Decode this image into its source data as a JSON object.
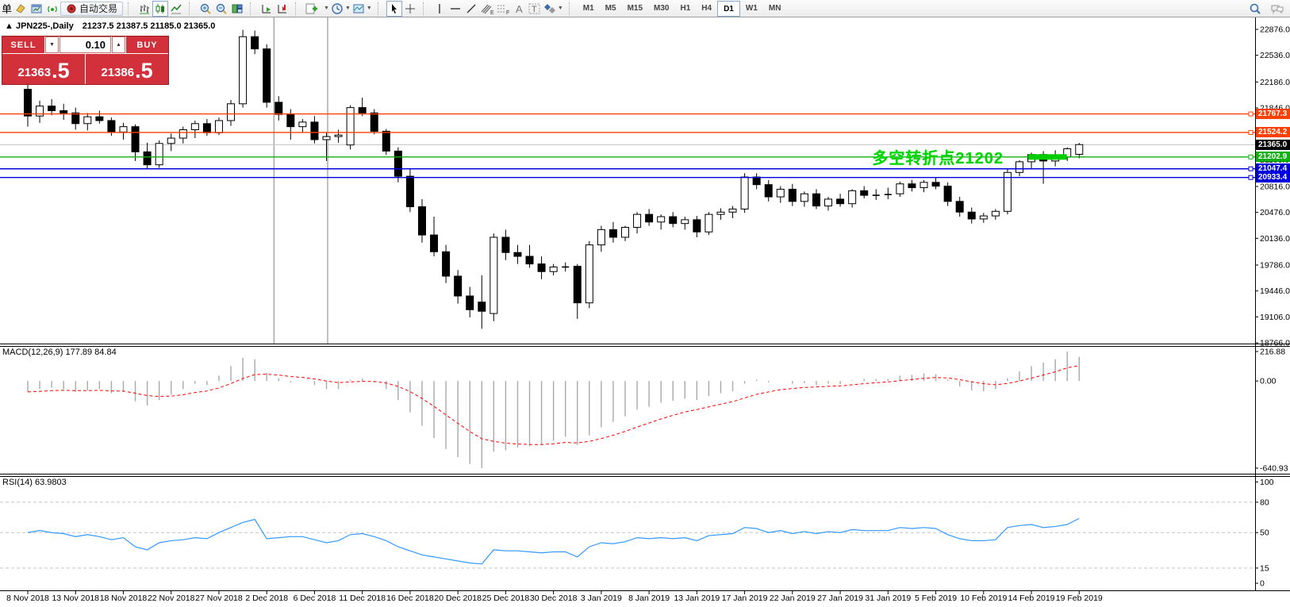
{
  "toolbar": {
    "new_order_partial": "单",
    "autotrade_label": "自动交易",
    "timeframes": [
      "M1",
      "M5",
      "M15",
      "M30",
      "H1",
      "H4",
      "D1",
      "W1",
      "MN"
    ],
    "active_timeframe": "D1"
  },
  "symbol_header": {
    "collapse_icon": "▲",
    "name": "JPN225-,Daily",
    "ohlc": "21237.5 21387.5 21185.0 21365.0"
  },
  "trade_panel": {
    "sell_label": "SELL",
    "buy_label": "BUY",
    "volume": "0.10",
    "spin_down": "▼",
    "spin_up": "▲",
    "sell_price_main": "21363",
    "sell_price_frac": ".5",
    "buy_price_main": "21386",
    "buy_price_frac": ".5"
  },
  "annotation": {
    "text": "多空转折点21202",
    "color": "#00d400"
  },
  "indicator_labels": {
    "macd": "MACD(12,26,9) 177.89 84.84",
    "rsi": "RSI(14) 63.9803"
  },
  "chart_data": [
    {
      "type": "candlestick",
      "title": "JPN225-,Daily",
      "ylim": [
        18756,
        23032
      ],
      "y_ticks": [
        22876.0,
        22536.0,
        22186.0,
        21846.0,
        21506.0,
        21166.0,
        20816.0,
        20476.0,
        20136.0,
        19786.0,
        19446.0,
        19106.0,
        18766.0
      ],
      "current_price": 21365.0,
      "current_price_label": "21365.0",
      "current_price_color": "#000000",
      "hlines": [
        {
          "price": 21767.3,
          "label": "21767.3",
          "color": "#ff4000"
        },
        {
          "price": 21524.2,
          "label": "21524.2",
          "color": "#ff4000"
        },
        {
          "price": 21202.9,
          "label": "21202.9",
          "color": "#10b010"
        },
        {
          "price": 21047.4,
          "label": "21047.4",
          "color": "#0000dd"
        },
        {
          "price": 20933.4,
          "label": "20933.4",
          "color": "#0000dd"
        }
      ],
      "vline_indices": [
        20.6,
        25.1
      ],
      "green_segment": {
        "price": 21202.9,
        "from_index": 84.0,
        "to_index": 86.7,
        "thickness": 7,
        "color": "#00cc00"
      },
      "x_labels": [
        {
          "index": 0,
          "label": "8 Nov 2018"
        },
        {
          "index": 4,
          "label": "13 Nov 2018"
        },
        {
          "index": 8,
          "label": "18 Nov 2018"
        },
        {
          "index": 12,
          "label": "22 Nov 2018"
        },
        {
          "index": 16,
          "label": "27 Nov 2018"
        },
        {
          "index": 20,
          "label": "2 Dec 2018"
        },
        {
          "index": 24,
          "label": "6 Dec 2018"
        },
        {
          "index": 28,
          "label": "11 Dec 2018"
        },
        {
          "index": 32,
          "label": "16 Dec 2018"
        },
        {
          "index": 36,
          "label": "20 Dec 2018"
        },
        {
          "index": 40,
          "label": "25 Dec 2018"
        },
        {
          "index": 44,
          "label": "30 Dec 2018"
        },
        {
          "index": 48,
          "label": "3 Jan 2019"
        },
        {
          "index": 52,
          "label": "8 Jan 2019"
        },
        {
          "index": 56,
          "label": "13 Jan 2019"
        },
        {
          "index": 60,
          "label": "17 Jan 2019"
        },
        {
          "index": 64,
          "label": "22 Jan 2019"
        },
        {
          "index": 68,
          "label": "27 Jan 2019"
        },
        {
          "index": 72,
          "label": "31 Jan 2019"
        },
        {
          "index": 76,
          "label": "5 Feb 2019"
        },
        {
          "index": 80,
          "label": "10 Feb 2019"
        },
        {
          "index": 84,
          "label": "14 Feb 2019"
        },
        {
          "index": 88,
          "label": "19 Feb 2019"
        }
      ],
      "candles": [
        [
          22090,
          22160,
          21600,
          21740
        ],
        [
          21740,
          21940,
          21650,
          21870
        ],
        [
          21870,
          21960,
          21750,
          21810
        ],
        [
          21810,
          21900,
          21690,
          21780
        ],
        [
          21780,
          21850,
          21560,
          21640
        ],
        [
          21640,
          21780,
          21550,
          21730
        ],
        [
          21730,
          21810,
          21640,
          21680
        ],
        [
          21680,
          21720,
          21480,
          21530
        ],
        [
          21530,
          21650,
          21430,
          21600
        ],
        [
          21600,
          21630,
          21150,
          21270
        ],
        [
          21270,
          21390,
          21050,
          21100
        ],
        [
          21100,
          21420,
          21060,
          21380
        ],
        [
          21380,
          21510,
          21280,
          21450
        ],
        [
          21450,
          21600,
          21380,
          21560
        ],
        [
          21560,
          21680,
          21450,
          21640
        ],
        [
          21640,
          21700,
          21480,
          21520
        ],
        [
          21520,
          21720,
          21490,
          21680
        ],
        [
          21680,
          21950,
          21610,
          21900
        ],
        [
          21900,
          22870,
          21850,
          22780
        ],
        [
          22780,
          22860,
          22550,
          22620
        ],
        [
          22620,
          22680,
          21850,
          21920
        ],
        [
          21920,
          22000,
          21680,
          21760
        ],
        [
          21760,
          21830,
          21430,
          21600
        ],
        [
          21600,
          21700,
          21520,
          21660
        ],
        [
          21660,
          21740,
          21380,
          21430
        ],
        [
          21430,
          21520,
          21150,
          21470
        ],
        [
          21470,
          21560,
          21390,
          21490
        ],
        [
          21360,
          21880,
          21300,
          21850
        ],
        [
          21850,
          21980,
          21740,
          21780
        ],
        [
          21780,
          21830,
          21500,
          21540
        ],
        [
          21540,
          21570,
          21230,
          21280
        ],
        [
          21280,
          21330,
          20870,
          20950
        ],
        [
          20950,
          21050,
          20480,
          20550
        ],
        [
          20550,
          20650,
          20080,
          20180
        ],
        [
          20180,
          20420,
          19900,
          19960
        ],
        [
          19960,
          20050,
          19550,
          19640
        ],
        [
          19640,
          19720,
          19280,
          19380
        ],
        [
          19380,
          19500,
          19100,
          19200
        ],
        [
          19300,
          19650,
          18950,
          19180
        ],
        [
          19150,
          20200,
          19050,
          20150
        ],
        [
          20150,
          20250,
          19850,
          19950
        ],
        [
          19950,
          20050,
          19800,
          19900
        ],
        [
          19900,
          20050,
          19750,
          19800
        ],
        [
          19800,
          19900,
          19600,
          19700
        ],
        [
          19700,
          19800,
          19650,
          19760
        ],
        [
          19760,
          19820,
          19700,
          19770
        ],
        [
          19770,
          19800,
          19080,
          19290
        ],
        [
          19290,
          20100,
          19220,
          20050
        ],
        [
          20050,
          20300,
          19960,
          20250
        ],
        [
          20250,
          20350,
          20080,
          20150
        ],
        [
          20150,
          20300,
          20100,
          20280
        ],
        [
          20280,
          20480,
          20200,
          20450
        ],
        [
          20450,
          20520,
          20300,
          20350
        ],
        [
          20350,
          20450,
          20250,
          20420
        ],
        [
          20420,
          20480,
          20280,
          20330
        ],
        [
          20330,
          20420,
          20250,
          20380
        ],
        [
          20380,
          20430,
          20150,
          20220
        ],
        [
          20220,
          20480,
          20180,
          20450
        ],
        [
          20450,
          20530,
          20380,
          20480
        ],
        [
          20480,
          20560,
          20400,
          20520
        ],
        [
          20520,
          20990,
          20470,
          20940
        ],
        [
          20940,
          20990,
          20780,
          20840
        ],
        [
          20840,
          20900,
          20620,
          20680
        ],
        [
          20680,
          20820,
          20600,
          20780
        ],
        [
          20780,
          20850,
          20560,
          20620
        ],
        [
          20620,
          20750,
          20550,
          20720
        ],
        [
          20720,
          20780,
          20520,
          20560
        ],
        [
          20560,
          20680,
          20500,
          20650
        ],
        [
          20650,
          20720,
          20550,
          20590
        ],
        [
          20590,
          20780,
          20540,
          20760
        ],
        [
          20760,
          20820,
          20660,
          20700
        ],
        [
          20700,
          20780,
          20640,
          20710
        ],
        [
          20710,
          20800,
          20650,
          20720
        ],
        [
          20720,
          20880,
          20680,
          20850
        ],
        [
          20850,
          20900,
          20750,
          20800
        ],
        [
          20800,
          20900,
          20740,
          20870
        ],
        [
          20870,
          20940,
          20780,
          20820
        ],
        [
          20820,
          20870,
          20560,
          20620
        ],
        [
          20620,
          20680,
          20420,
          20480
        ],
        [
          20480,
          20540,
          20330,
          20390
        ],
        [
          20390,
          20470,
          20340,
          20430
        ],
        [
          20430,
          20520,
          20380,
          20490
        ],
        [
          20490,
          21050,
          20450,
          21000
        ],
        [
          21000,
          21160,
          20950,
          21140
        ],
        [
          21140,
          21260,
          21050,
          21235
        ],
        [
          21235,
          21280,
          20850,
          21150
        ],
        [
          21150,
          21290,
          21080,
          21200
        ],
        [
          21200,
          21330,
          21150,
          21310
        ],
        [
          21237.5,
          21387.5,
          21185,
          21365
        ]
      ]
    },
    {
      "type": "bar",
      "title": "MACD(12,26,9)",
      "values_display": "177.89 84.84",
      "ylim": [
        -682,
        252
      ],
      "y_ticks": [
        216.88,
        0.0,
        -640.93
      ],
      "bar_color": "#a8a8a8",
      "signal_color": "#ff0000",
      "histogram": [
        -80,
        -60,
        -50,
        -60,
        -80,
        -70,
        -60,
        -90,
        -80,
        -150,
        -180,
        -140,
        -100,
        -60,
        -20,
        -30,
        40,
        110,
        170,
        160,
        60,
        20,
        -10,
        0,
        -30,
        -60,
        -60,
        10,
        20,
        -10,
        -60,
        -140,
        -230,
        -330,
        -420,
        -500,
        -560,
        -610,
        -640.93,
        -520,
        -510,
        -490,
        -480,
        -470,
        -440,
        -410,
        -470,
        -400,
        -340,
        -300,
        -260,
        -210,
        -190,
        -160,
        -145,
        -130,
        -140,
        -110,
        -90,
        -75,
        -20,
        10,
        -10,
        0,
        -20,
        -15,
        -30,
        -20,
        -25,
        5,
        15,
        15,
        15,
        40,
        45,
        55,
        50,
        10,
        -40,
        -70,
        -75,
        -60,
        20,
        70,
        110,
        135,
        160,
        216.88,
        177.89
      ]
    },
    {
      "type": "line",
      "title": "RSI(14)",
      "value_display": "63.9803",
      "ylim": [
        -7,
        105
      ],
      "y_ticks": [
        100,
        80,
        50,
        15,
        0
      ],
      "levels": [
        80,
        50,
        15
      ],
      "line_color": "#3399ff",
      "values": [
        50,
        52,
        50,
        49,
        46,
        48,
        46,
        43,
        45,
        36,
        33,
        40,
        42,
        43,
        45,
        44,
        50,
        55,
        60,
        63,
        44,
        45,
        46,
        46,
        43,
        40,
        42,
        48,
        49,
        46,
        42,
        36,
        32,
        28,
        26,
        24,
        22,
        20,
        19,
        33,
        32,
        32,
        31,
        30,
        31,
        31,
        26,
        36,
        40,
        39,
        41,
        45,
        44,
        45,
        44,
        45,
        42,
        47,
        48,
        49,
        55,
        54,
        50,
        52,
        49,
        51,
        49,
        51,
        50,
        53,
        52,
        52,
        52,
        55,
        54,
        55,
        54,
        48,
        44,
        42,
        42,
        43,
        55,
        57,
        58,
        55,
        56,
        58,
        63.98
      ]
    }
  ]
}
